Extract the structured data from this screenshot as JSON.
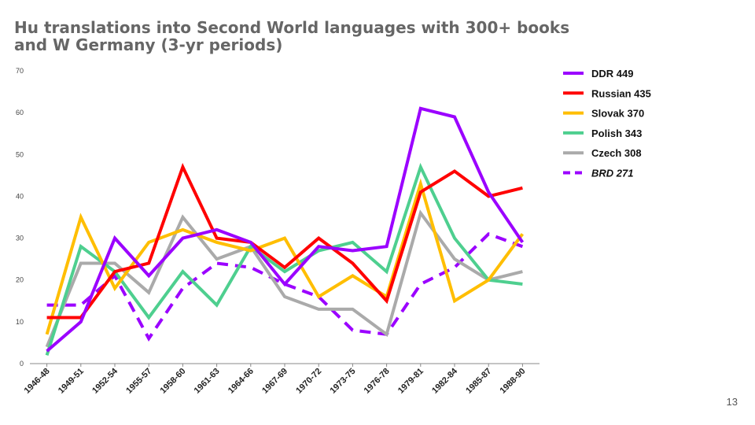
{
  "slide": {
    "number": "13"
  },
  "chart_data": {
    "type": "line",
    "title": "Hu translations into Second World languages with 300+ books and W Germany (3-yr periods)",
    "xlabel": "",
    "ylabel": "",
    "ylim": [
      0,
      70
    ],
    "yticks": [
      0,
      10,
      20,
      30,
      40,
      50,
      60,
      70
    ],
    "grid": false,
    "legend_position": "right",
    "categories": [
      "1946-48",
      "1949-51",
      "1952-54",
      "1955-57",
      "1958-60",
      "1961-63",
      "1964-66",
      "1967-69",
      "1970-72",
      "1973-75",
      "1976-78",
      "1979-81",
      "1982-84",
      "1985-87",
      "1988-90"
    ],
    "series": [
      {
        "name": "DDR 449",
        "color": "#9b00ff",
        "dashed": false,
        "italic": false,
        "values": [
          3,
          10,
          30,
          21,
          30,
          32,
          29,
          19,
          28,
          27,
          28,
          61,
          59,
          41,
          29
        ]
      },
      {
        "name": "Russian 435",
        "color": "#ff0000",
        "dashed": false,
        "italic": false,
        "values": [
          11,
          11,
          22,
          24,
          47,
          30,
          29,
          23,
          30,
          24,
          15,
          41,
          46,
          40,
          42
        ]
      },
      {
        "name": "Slovak 370",
        "color": "#ffbe00",
        "dashed": false,
        "italic": false,
        "values": [
          7,
          35,
          18,
          29,
          32,
          29,
          27,
          30,
          16,
          21,
          16,
          43,
          15,
          20,
          31
        ]
      },
      {
        "name": "Polish 343",
        "color": "#4ecf8f",
        "dashed": false,
        "italic": false,
        "values": [
          2,
          28,
          22,
          11,
          22,
          14,
          28,
          22,
          27,
          29,
          22,
          47,
          30,
          20,
          19
        ]
      },
      {
        "name": "Czech 308",
        "color": "#aaaaaa",
        "dashed": false,
        "italic": false,
        "values": [
          4,
          24,
          24,
          17,
          35,
          25,
          28,
          16,
          13,
          13,
          7,
          36,
          25,
          20,
          22
        ]
      },
      {
        "name": "BRD 271",
        "color": "#9b00ff",
        "dashed": true,
        "italic": true,
        "values": [
          14,
          14,
          21,
          6,
          18,
          24,
          23,
          19,
          16,
          8,
          7,
          19,
          23,
          31,
          28
        ]
      }
    ]
  }
}
